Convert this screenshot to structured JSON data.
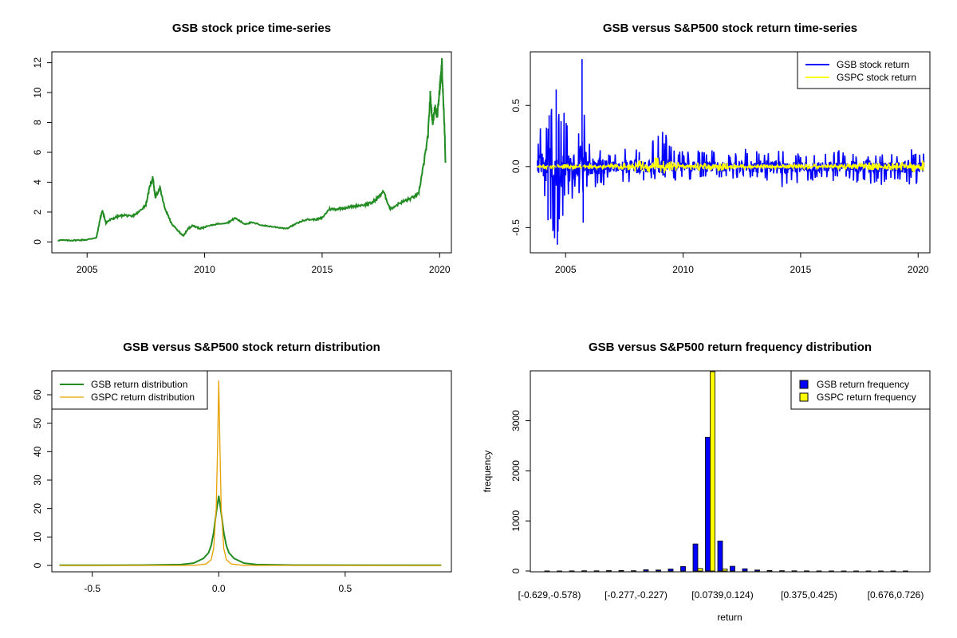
{
  "chart_data": [
    {
      "type": "line",
      "title": "GSB stock price time-series",
      "xlabel": "",
      "ylabel": "",
      "xlim": [
        2003.5,
        2020.5
      ],
      "ylim": [
        0,
        12
      ],
      "x_ticks": [
        "2005",
        "2010",
        "2015",
        "2020"
      ],
      "y_ticks": [
        "0",
        "2",
        "4",
        "6",
        "8",
        "10",
        "12"
      ],
      "series": [
        {
          "name": "GSB stock price",
          "color": "#228B22",
          "x": [
            2003.75,
            2004.2,
            2004.6,
            2005.0,
            2005.4,
            2005.55,
            2005.65,
            2005.8,
            2006.0,
            2006.3,
            2006.6,
            2006.9,
            2007.2,
            2007.5,
            2007.7,
            2007.8,
            2007.9,
            2008.1,
            2008.3,
            2008.6,
            2008.9,
            2009.1,
            2009.3,
            2009.5,
            2009.8,
            2010.0,
            2010.5,
            2011.0,
            2011.3,
            2011.7,
            2012.0,
            2012.5,
            2013.0,
            2013.5,
            2014.0,
            2014.3,
            2014.7,
            2015.0,
            2015.3,
            2015.6,
            2016.0,
            2016.4,
            2016.8,
            2017.1,
            2017.4,
            2017.6,
            2017.9,
            2018.3,
            2018.6,
            2018.9,
            2019.1,
            2019.3,
            2019.5,
            2019.6,
            2019.7,
            2019.8,
            2019.9,
            2020.0,
            2020.05,
            2020.1,
            2020.15,
            2020.2,
            2020.25
          ],
          "y": [
            0.12,
            0.1,
            0.12,
            0.15,
            0.3,
            1.5,
            2.1,
            1.3,
            1.5,
            1.7,
            1.8,
            1.7,
            2.0,
            2.5,
            3.9,
            4.3,
            3.0,
            3.6,
            2.3,
            1.2,
            0.7,
            0.4,
            0.9,
            1.1,
            0.9,
            1.0,
            1.2,
            1.3,
            1.6,
            1.2,
            1.3,
            1.1,
            1.0,
            0.9,
            1.3,
            1.5,
            1.5,
            1.6,
            2.2,
            2.2,
            2.3,
            2.4,
            2.5,
            2.6,
            3.0,
            3.4,
            2.2,
            2.6,
            2.8,
            3.0,
            3.2,
            5.0,
            7.0,
            9.8,
            8.0,
            9.0,
            8.5,
            10.2,
            11.0,
            12.0,
            9.5,
            8.0,
            5.3
          ]
        }
      ]
    },
    {
      "type": "line",
      "title": "GSB versus S&P500 stock return time-series",
      "xlabel": "",
      "ylabel": "",
      "xlim": [
        2003.5,
        2020.5
      ],
      "ylim": [
        -0.7,
        0.9
      ],
      "x_ticks": [
        "2005",
        "2010",
        "2015",
        "2020"
      ],
      "y_ticks": [
        "-0.5",
        "0.0",
        "0.5"
      ],
      "legend": {
        "position": "top-right",
        "entries": [
          "GSB stock return",
          "GSPC stock return"
        ]
      },
      "series": [
        {
          "name": "GSB stock return",
          "color": "#0000FF",
          "envelope_x": [
            2003.8,
            2004.0,
            2004.3,
            2004.6,
            2004.9,
            2005.2,
            2005.5,
            2005.7,
            2006.0,
            2006.5,
            2007.0,
            2007.5,
            2008.0,
            2008.5,
            2009.0,
            2009.5,
            2010.0,
            2011.0,
            2012.0,
            2013.0,
            2014.0,
            2015.0,
            2016.0,
            2017.0,
            2018.0,
            2019.0,
            2019.5,
            2020.0,
            2020.25
          ],
          "envelope_high": [
            0.24,
            0.36,
            0.42,
            0.63,
            0.48,
            0.4,
            0.28,
            0.88,
            0.22,
            0.2,
            0.12,
            0.16,
            0.18,
            0.15,
            0.33,
            0.2,
            0.12,
            0.14,
            0.12,
            0.16,
            0.14,
            0.12,
            0.13,
            0.14,
            0.12,
            0.1,
            0.17,
            0.12,
            0.12
          ],
          "envelope_low": [
            -0.2,
            -0.36,
            -0.44,
            -0.64,
            -0.4,
            -0.3,
            -0.2,
            -0.46,
            -0.18,
            -0.16,
            -0.14,
            -0.15,
            -0.14,
            -0.12,
            -0.14,
            -0.13,
            -0.11,
            -0.12,
            -0.1,
            -0.1,
            -0.2,
            -0.14,
            -0.12,
            -0.13,
            -0.18,
            -0.12,
            -0.15,
            -0.14,
            -0.21
          ]
        },
        {
          "name": "GSPC stock return",
          "color": "#FFFF00",
          "envelope_x": [
            2003.8,
            2005.0,
            2007.0,
            2008.3,
            2008.8,
            2009.3,
            2010.0,
            2011.5,
            2012.5,
            2015.0,
            2016.0,
            2018.0,
            2019.0,
            2020.0,
            2020.25
          ],
          "envelope_high": [
            0.02,
            0.02,
            0.02,
            0.05,
            0.09,
            0.05,
            0.03,
            0.04,
            0.02,
            0.02,
            0.02,
            0.03,
            0.03,
            0.05,
            0.09
          ],
          "envelope_low": [
            -0.02,
            -0.02,
            -0.02,
            -0.05,
            -0.09,
            -0.05,
            -0.03,
            -0.04,
            -0.02,
            -0.02,
            -0.02,
            -0.03,
            -0.03,
            -0.06,
            -0.12
          ]
        }
      ]
    },
    {
      "type": "line",
      "title": "GSB versus S&P500 stock return distribution",
      "xlabel": "",
      "ylabel": "",
      "xlim": [
        -0.66,
        0.92
      ],
      "ylim": [
        -1,
        68
      ],
      "x_ticks": [
        "-0.5",
        "0.0",
        "0.5"
      ],
      "y_ticks": [
        "0",
        "10",
        "20",
        "30",
        "40",
        "50",
        "60"
      ],
      "legend": {
        "position": "top-left",
        "entries": [
          "GSB return distribution",
          "GSPC return distribution"
        ]
      },
      "series": [
        {
          "name": "GSB return distribution",
          "color": "#228B22",
          "x": [
            -0.63,
            -0.3,
            -0.15,
            -0.1,
            -0.06,
            -0.04,
            -0.03,
            -0.02,
            -0.01,
            0.0,
            0.01,
            0.02,
            0.03,
            0.04,
            0.06,
            0.1,
            0.15,
            0.3,
            0.88
          ],
          "y": [
            0.05,
            0.1,
            0.3,
            0.8,
            2.5,
            4.5,
            7.0,
            11.5,
            18.5,
            24.5,
            18.5,
            11.5,
            7.0,
            4.5,
            2.5,
            0.8,
            0.3,
            0.1,
            0.05
          ]
        },
        {
          "name": "GSPC return distribution",
          "color": "#E6A000",
          "x": [
            -0.63,
            -0.1,
            -0.05,
            -0.03,
            -0.02,
            -0.01,
            -0.005,
            0.0,
            0.005,
            0.01,
            0.02,
            0.03,
            0.05,
            0.1,
            0.88
          ],
          "y": [
            0,
            0,
            0.5,
            2.0,
            6.0,
            20.0,
            40.0,
            65.0,
            40.0,
            20.0,
            6.0,
            2.0,
            0.5,
            0,
            0
          ]
        }
      ]
    },
    {
      "type": "bar",
      "title": "GSB versus S&P500 return frequency distribution",
      "xlabel": "return",
      "ylabel": "frequency",
      "ylim": [
        0,
        3980
      ],
      "y_ticks": [
        "0",
        "1000",
        "2000",
        "3000"
      ],
      "x_tick_labels": [
        "[-0.629,-0.578)",
        "[-0.277,-0.227)",
        "[0.0739,0.124)",
        "[0.375,0.425)",
        "[0.676,0.726)"
      ],
      "legend": {
        "position": "top-right",
        "entries": [
          "GSB return frequency",
          "GSPC return frequency"
        ]
      },
      "series": [
        {
          "name": "GSB return frequency",
          "color": "#0000FF",
          "values": [
            2,
            1,
            3,
            5,
            4,
            8,
            10,
            6,
            25,
            20,
            40,
            90,
            540,
            2670,
            600,
            95,
            45,
            20,
            10,
            6,
            4,
            3,
            2,
            2,
            1,
            1,
            1,
            1,
            1,
            1
          ]
        },
        {
          "name": "GSPC return frequency",
          "color": "#FFFF00",
          "values": [
            0,
            0,
            0,
            0,
            0,
            0,
            0,
            0,
            0,
            0,
            0,
            0,
            50,
            4000,
            40,
            0,
            0,
            0,
            0,
            0,
            0,
            0,
            0,
            0,
            0,
            0,
            0,
            0,
            0,
            0
          ]
        }
      ]
    }
  ]
}
